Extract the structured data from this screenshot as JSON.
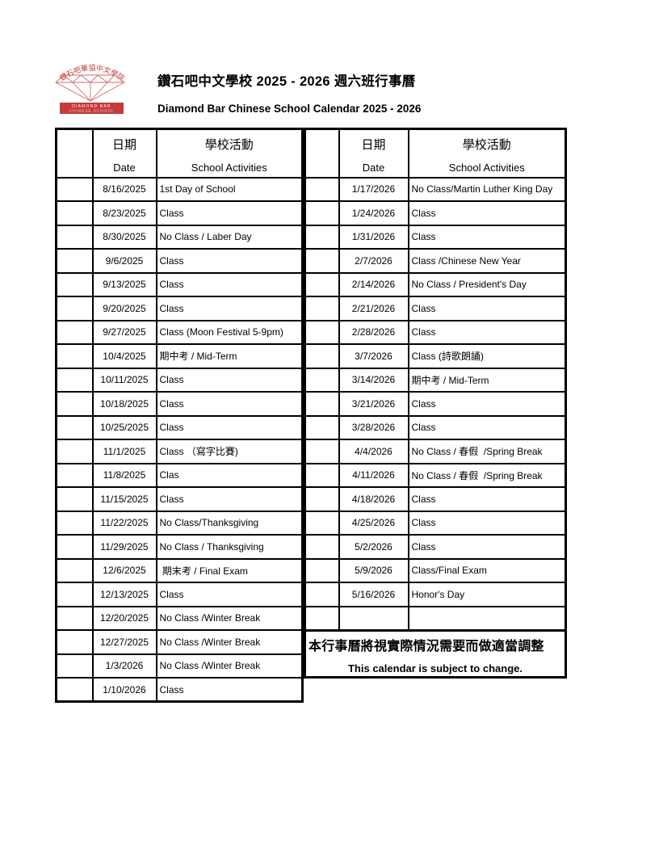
{
  "page": {
    "title_zh": "鑽石吧中文學校 2025 - 2026 週六班行事曆",
    "title_en": "Diamond Bar Chinese School Calendar 2025 - 2026"
  },
  "logo": {
    "arc_text": "鑽石吧華協中文學院",
    "banner_line1": "DIAMOND BAR",
    "banner_line2": "CHINESE SCHOOL",
    "red": "#c43a3a"
  },
  "table_header": {
    "date_zh": "日期",
    "date_en": "Date",
    "activities_zh": "學校活動",
    "activities_en": "School Activities"
  },
  "left_rows": [
    {
      "date": "8/16/2025",
      "activity": "1st Day of School"
    },
    {
      "date": "8/23/2025",
      "activity": "Class"
    },
    {
      "date": "8/30/2025",
      "activity": "No Class / Laber Day"
    },
    {
      "date": "9/6/2025",
      "activity": "Class"
    },
    {
      "date": "9/13/2025",
      "activity": "Class"
    },
    {
      "date": "9/20/2025",
      "activity": "Class"
    },
    {
      "date": "9/27/2025",
      "activity": "Class (Moon Festival 5-9pm)"
    },
    {
      "date": "10/4/2025",
      "activity": "期中考 / Mid-Term"
    },
    {
      "date": "10/11/2025",
      "activity": "Class"
    },
    {
      "date": "10/18/2025",
      "activity": "Class"
    },
    {
      "date": "10/25/2025",
      "activity": "Class"
    },
    {
      "date": "11/1/2025",
      "activity": "Class （寫字比賽)"
    },
    {
      "date": "11/8/2025",
      "activity": "Clas"
    },
    {
      "date": "11/15/2025",
      "activity": "Class"
    },
    {
      "date": "11/22/2025",
      "activity": "No Class/Thanksgiving"
    },
    {
      "date": "11/29/2025",
      "activity": "No Class / Thanksgiving"
    },
    {
      "date": "12/6/2025",
      "activity": " 期末考 / Final Exam"
    },
    {
      "date": "12/13/2025",
      "activity": "Class"
    },
    {
      "date": "12/20/2025",
      "activity": "No Class /Winter Break"
    },
    {
      "date": "12/27/2025",
      "activity": "No Class /Winter Break"
    },
    {
      "date": "1/3/2026",
      "activity": "No Class /Winter Break"
    },
    {
      "date": "1/10/2026",
      "activity": "Class"
    }
  ],
  "right_rows": [
    {
      "date": "1/17/2026",
      "activity": "No Class/Martin Luther King Day"
    },
    {
      "date": "1/24/2026",
      "activity": "Class"
    },
    {
      "date": "1/31/2026",
      "activity": "Class"
    },
    {
      "date": "2/7/2026",
      "activity": "Class /Chinese New Year"
    },
    {
      "date": "2/14/2026",
      "activity": "No Class / President's Day"
    },
    {
      "date": "2/21/2026",
      "activity": "Class"
    },
    {
      "date": "2/28/2026",
      "activity": "Class"
    },
    {
      "date": "3/7/2026",
      "activity": "Class (詩歌朗誦)"
    },
    {
      "date": "3/14/2026",
      "activity": "期中考 / Mid-Term"
    },
    {
      "date": "3/21/2026",
      "activity": "Class"
    },
    {
      "date": "3/28/2026",
      "activity": "Class"
    },
    {
      "date": "4/4/2026",
      "activity": "No Class / 春假  /Spring Break"
    },
    {
      "date": "4/11/2026",
      "activity": "No Class / 春假  /Spring Break"
    },
    {
      "date": "4/18/2026",
      "activity": "Class"
    },
    {
      "date": "4/25/2026",
      "activity": "Class"
    },
    {
      "date": "5/2/2026",
      "activity": "Class"
    },
    {
      "date": "5/9/2026",
      "activity": "Class/Final Exam"
    },
    {
      "date": "5/16/2026",
      "activity": "Honor's Day"
    },
    {
      "date": "",
      "activity": ""
    }
  ],
  "note": {
    "zh": "本行事曆將視實際情況需要而做適當調整",
    "en": "This calendar is subject to change."
  }
}
